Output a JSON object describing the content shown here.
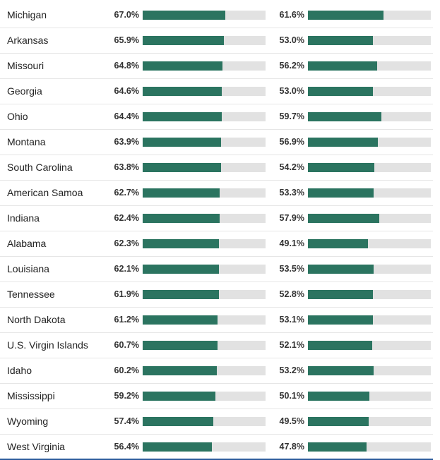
{
  "colors": {
    "bar": "#2b7460",
    "track": "#e2e2e2",
    "bottom_rule": "#2c5c9c"
  },
  "chart_data": {
    "type": "bar",
    "orientation": "horizontal",
    "scale_max": 100,
    "rows": [
      {
        "state": "Michigan",
        "a_label": "67.0%",
        "a": 67.0,
        "b_label": "61.6%",
        "b": 61.6
      },
      {
        "state": "Arkansas",
        "a_label": "65.9%",
        "a": 65.9,
        "b_label": "53.0%",
        "b": 53.0
      },
      {
        "state": "Missouri",
        "a_label": "64.8%",
        "a": 64.8,
        "b_label": "56.2%",
        "b": 56.2
      },
      {
        "state": "Georgia",
        "a_label": "64.6%",
        "a": 64.6,
        "b_label": "53.0%",
        "b": 53.0
      },
      {
        "state": "Ohio",
        "a_label": "64.4%",
        "a": 64.4,
        "b_label": "59.7%",
        "b": 59.7
      },
      {
        "state": "Montana",
        "a_label": "63.9%",
        "a": 63.9,
        "b_label": "56.9%",
        "b": 56.9
      },
      {
        "state": "South Carolina",
        "a_label": "63.8%",
        "a": 63.8,
        "b_label": "54.2%",
        "b": 54.2
      },
      {
        "state": "American Samoa",
        "a_label": "62.7%",
        "a": 62.7,
        "b_label": "53.3%",
        "b": 53.3
      },
      {
        "state": "Indiana",
        "a_label": "62.4%",
        "a": 62.4,
        "b_label": "57.9%",
        "b": 57.9
      },
      {
        "state": "Alabama",
        "a_label": "62.3%",
        "a": 62.3,
        "b_label": "49.1%",
        "b": 49.1
      },
      {
        "state": "Louisiana",
        "a_label": "62.1%",
        "a": 62.1,
        "b_label": "53.5%",
        "b": 53.5
      },
      {
        "state": "Tennessee",
        "a_label": "61.9%",
        "a": 61.9,
        "b_label": "52.8%",
        "b": 52.8
      },
      {
        "state": "North Dakota",
        "a_label": "61.2%",
        "a": 61.2,
        "b_label": "53.1%",
        "b": 53.1
      },
      {
        "state": "U.S. Virgin Islands",
        "a_label": "60.7%",
        "a": 60.7,
        "b_label": "52.1%",
        "b": 52.1
      },
      {
        "state": "Idaho",
        "a_label": "60.2%",
        "a": 60.2,
        "b_label": "53.2%",
        "b": 53.2
      },
      {
        "state": "Mississippi",
        "a_label": "59.2%",
        "a": 59.2,
        "b_label": "50.1%",
        "b": 50.1
      },
      {
        "state": "Wyoming",
        "a_label": "57.4%",
        "a": 57.4,
        "b_label": "49.5%",
        "b": 49.5
      },
      {
        "state": "West Virginia",
        "a_label": "56.4%",
        "a": 56.4,
        "b_label": "47.8%",
        "b": 47.8
      }
    ]
  }
}
